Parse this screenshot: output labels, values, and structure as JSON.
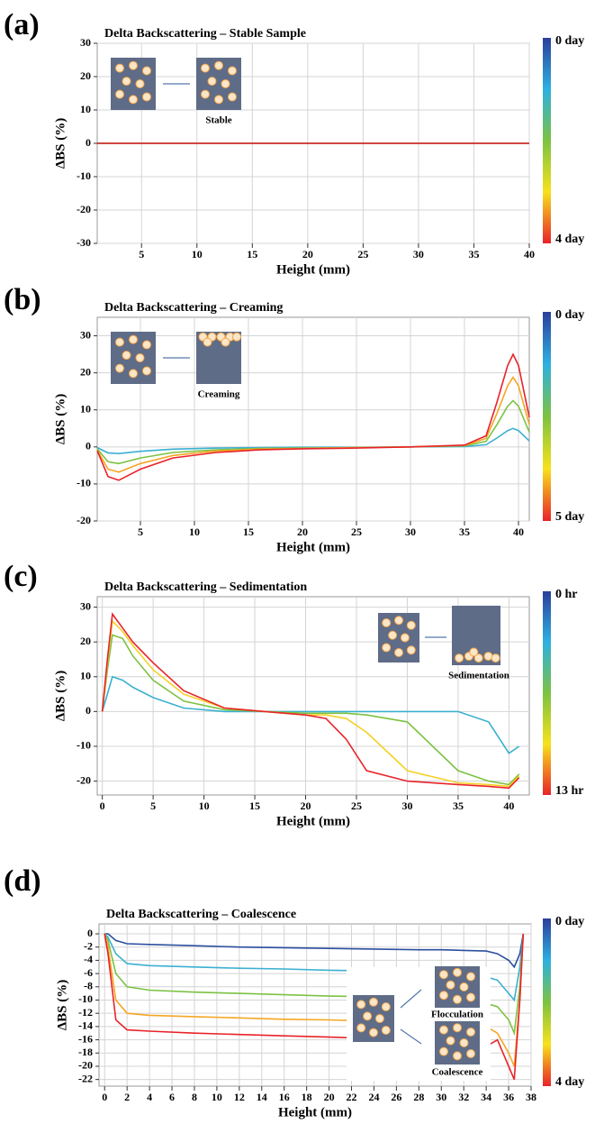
{
  "chart_data": [
    {
      "type": "line",
      "panel_label": "(a)",
      "title": "Delta Backscattering – Stable Sample",
      "xlabel": "Height (mm)",
      "ylabel": "ΔBS (%)",
      "colorbar_labels": [
        "0 day",
        "4 day"
      ],
      "inset_labels": [
        "Stable"
      ],
      "xlim": [
        1,
        40
      ],
      "xticks": [
        5,
        10,
        15,
        20,
        25,
        30,
        35,
        40
      ],
      "ylim": [
        -30,
        30
      ],
      "yticks": [
        -30,
        -20,
        -10,
        0,
        10,
        20,
        30
      ],
      "grid": true,
      "x": [
        1,
        5,
        10,
        15,
        20,
        25,
        30,
        35,
        40
      ],
      "series": [
        {
          "color": "#2b4fa0",
          "values": [
            0,
            0,
            0,
            0,
            0,
            0,
            0,
            0,
            0
          ]
        },
        {
          "color": "#7cc242",
          "values": [
            0,
            0,
            0,
            0,
            0,
            0,
            0,
            0,
            0
          ]
        },
        {
          "color": "#e8232a",
          "values": [
            0,
            0,
            0,
            0,
            0,
            0,
            0,
            0,
            0
          ]
        }
      ]
    },
    {
      "type": "line",
      "panel_label": "(b)",
      "title": "Delta Backscattering – Creaming",
      "xlabel": "Height (mm)",
      "ylabel": "ΔBS (%)",
      "colorbar_labels": [
        "0 day",
        "5 day"
      ],
      "inset_labels": [
        "Creaming"
      ],
      "xlim": [
        1,
        41
      ],
      "xticks": [
        5,
        10,
        15,
        20,
        25,
        30,
        35,
        40
      ],
      "ylim": [
        -20,
        35
      ],
      "yticks": [
        -20,
        -10,
        0,
        10,
        20,
        30
      ],
      "grid": true,
      "x": [
        1,
        2,
        3,
        5,
        8,
        12,
        16,
        20,
        25,
        30,
        35,
        37,
        38,
        39,
        39.5,
        40,
        41
      ],
      "series": [
        {
          "color": "#3bb0d0",
          "values": [
            -0.2,
            -1.6,
            -1.8,
            -1.2,
            -0.6,
            -0.3,
            -0.2,
            -0.1,
            -0.1,
            0,
            0.1,
            0.6,
            2.4,
            4.4,
            5,
            4.4,
            1.6
          ]
        },
        {
          "color": "#7cc242",
          "values": [
            -0.5,
            -4,
            -4.5,
            -3,
            -1.5,
            -0.8,
            -0.4,
            -0.3,
            -0.2,
            0,
            0.3,
            1.5,
            6,
            11,
            12.5,
            11,
            4
          ]
        },
        {
          "color": "#f5a623",
          "values": [
            -0.8,
            -6,
            -6.8,
            -4.5,
            -2.3,
            -1.1,
            -0.6,
            -0.4,
            -0.2,
            0,
            0.4,
            2.3,
            9,
            16.5,
            18.8,
            16.5,
            6
          ]
        },
        {
          "color": "#e8232a",
          "values": [
            -1,
            -8,
            -9,
            -6,
            -3,
            -1.5,
            -0.8,
            -0.5,
            -0.3,
            0,
            0.5,
            3,
            12,
            22,
            25,
            22,
            8
          ]
        }
      ]
    },
    {
      "type": "line",
      "panel_label": "(c)",
      "title": "Delta Backscattering – Sedimentation",
      "xlabel": "Height (mm)",
      "ylabel": "ΔBS (%)",
      "colorbar_labels": [
        "0 hr",
        "13 hr"
      ],
      "inset_labels": [
        "Sedimentation"
      ],
      "xlim": [
        -0.5,
        42
      ],
      "xticks": [
        0,
        5,
        10,
        15,
        20,
        25,
        30,
        35,
        40
      ],
      "ylim": [
        -24,
        33
      ],
      "yticks": [
        -20,
        -10,
        0,
        10,
        20,
        30
      ],
      "grid": true,
      "x": [
        0,
        0.5,
        1,
        2,
        3,
        5,
        8,
        12,
        16,
        20,
        22,
        24,
        26,
        30,
        35,
        38,
        40,
        41
      ],
      "series": [
        {
          "color": "#3bb0d0",
          "values": [
            0,
            5,
            10,
            9,
            7,
            4,
            1,
            0,
            0,
            0,
            0,
            0,
            0,
            0,
            0,
            -3,
            -12,
            -10
          ]
        },
        {
          "color": "#7cc242",
          "values": [
            0,
            12,
            22,
            21,
            16,
            9,
            3,
            0.5,
            0,
            -0.5,
            -0.5,
            -0.5,
            -1,
            -3,
            -17,
            -20,
            -21,
            -18
          ]
        },
        {
          "color": "#f5d023",
          "values": [
            0,
            14,
            26,
            23,
            19,
            12,
            5,
            1,
            0,
            -1,
            -1,
            -2,
            -6,
            -17,
            -20.5,
            -21,
            -21.5,
            -18.5
          ]
        },
        {
          "color": "#e8232a",
          "values": [
            0,
            15,
            28,
            24,
            20,
            14,
            6,
            1,
            0,
            -1,
            -2,
            -8,
            -17,
            -20,
            -21,
            -21.5,
            -22,
            -19
          ]
        }
      ]
    },
    {
      "type": "line",
      "panel_label": "(d)",
      "title": "Delta Backscattering – Coalescence",
      "xlabel": "Height (mm)",
      "ylabel": "ΔBS (%)",
      "colorbar_labels": [
        "0 day",
        "4 day"
      ],
      "inset_labels": [
        "Flocculation",
        "Coalescence"
      ],
      "xlim": [
        -0.5,
        38
      ],
      "xticks": [
        0,
        2,
        4,
        6,
        8,
        10,
        12,
        14,
        16,
        18,
        20,
        22,
        24,
        26,
        28,
        30,
        32,
        34,
        36,
        38
      ],
      "ylim": [
        -23,
        1.5
      ],
      "yticks": [
        -22,
        -20,
        -18,
        -16,
        -14,
        -12,
        -10,
        -8,
        -6,
        -4,
        -2,
        0
      ],
      "grid": true,
      "x": [
        0,
        0.3,
        1,
        2,
        4,
        8,
        12,
        16,
        20,
        24,
        28,
        30,
        32,
        34,
        35,
        36,
        36.5,
        37,
        37.3
      ],
      "series": [
        {
          "color": "#2b4fa0",
          "values": [
            0,
            0,
            -1,
            -1.5,
            -1.6,
            -1.8,
            -2,
            -2.1,
            -2.2,
            -2.3,
            -2.4,
            -2.4,
            -2.5,
            -2.6,
            -3,
            -4,
            -5,
            -3,
            0
          ]
        },
        {
          "color": "#3bb0d0",
          "values": [
            0,
            -0.5,
            -3,
            -4.5,
            -4.8,
            -5,
            -5.2,
            -5.3,
            -5.5,
            -5.6,
            -5.7,
            -5.8,
            -6,
            -6.5,
            -7,
            -9,
            -10,
            -5,
            0
          ]
        },
        {
          "color": "#7cc242",
          "values": [
            0,
            -1,
            -6,
            -8,
            -8.5,
            -8.8,
            -9,
            -9.2,
            -9.4,
            -9.5,
            -9.7,
            -9.8,
            -10,
            -10.5,
            -11,
            -13,
            -15,
            -8,
            0
          ]
        },
        {
          "color": "#f5a623",
          "values": [
            0,
            -2,
            -10,
            -12,
            -12.3,
            -12.5,
            -12.7,
            -12.9,
            -13,
            -13.2,
            -13.3,
            -13.4,
            -13.6,
            -14,
            -15,
            -18,
            -20,
            -10,
            0
          ]
        },
        {
          "color": "#e8232a",
          "values": [
            0,
            -3,
            -13,
            -14.5,
            -14.7,
            -15,
            -15.2,
            -15.4,
            -15.6,
            -15.8,
            -16,
            -16.5,
            -17,
            -17,
            -16,
            -20,
            -22,
            -10,
            0
          ]
        }
      ]
    }
  ]
}
